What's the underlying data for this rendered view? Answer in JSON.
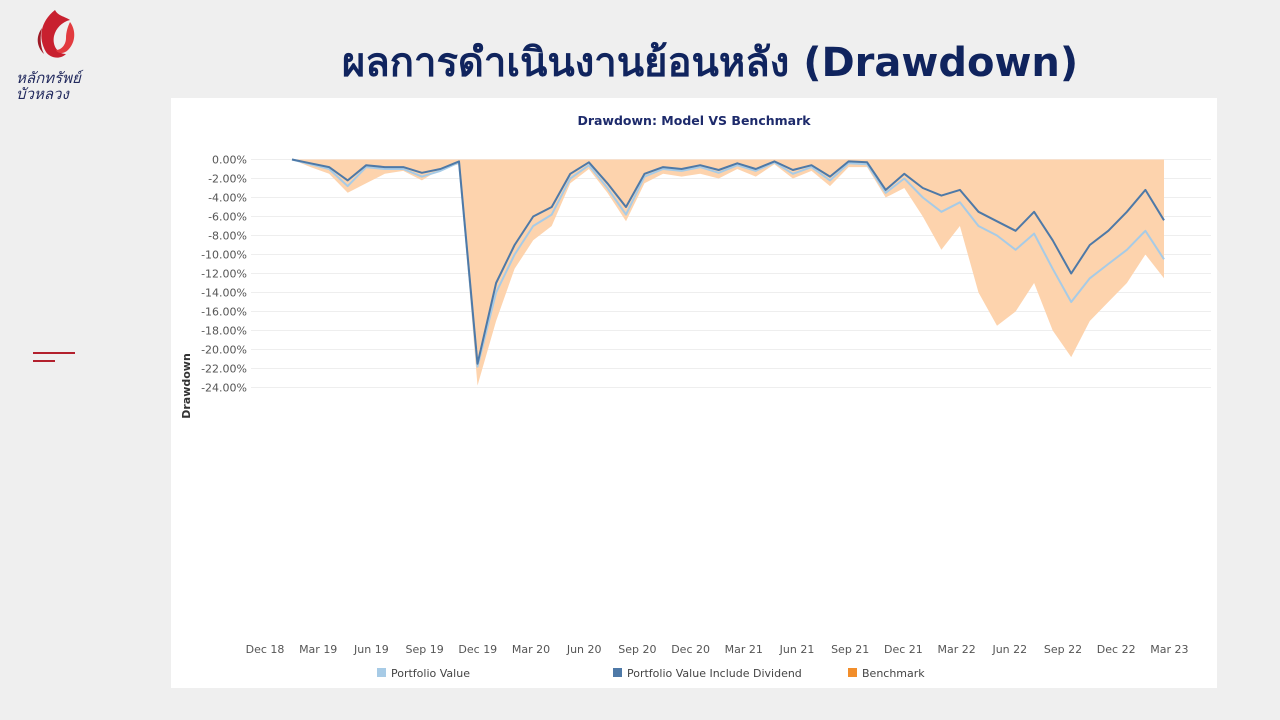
{
  "header": {
    "title": "ผลการดำเนินงานย้อนหลัง (Drawdown)",
    "logo_line1": "หลักทรัพย์",
    "logo_line2": "บัวหลวง"
  },
  "colors": {
    "portfolio_value": "#a7cbe6",
    "portfolio_include_dividend": "#4e79a7",
    "benchmark_fill": "#fdd3ad",
    "benchmark_legend": "#f28e2b",
    "title": "#10245e",
    "brand_red": "#c8202f"
  },
  "chart_data": {
    "type": "area",
    "title": "Drawdown: Model VS Benchmark",
    "xlabel": "",
    "ylabel": "Drawdown",
    "y_unit": "%",
    "ylim": [
      -25,
      0
    ],
    "y_ticks": [
      0,
      -2,
      -4,
      -6,
      -8,
      -10,
      -12,
      -14,
      -16,
      -18,
      -20,
      -22,
      -24
    ],
    "y_tick_labels": [
      "0.00%",
      "-2.00%",
      "-4.00%",
      "-6.00%",
      "-8.00%",
      "-10.00%",
      "-12.00%",
      "-14.00%",
      "-16.00%",
      "-18.00%",
      "-20.00%",
      "-22.00%",
      "-24.00%"
    ],
    "x_tick_labels": [
      "Dec 18",
      "Mar 19",
      "Jun 19",
      "Sep 19",
      "Dec 19",
      "Mar 20",
      "Jun 20",
      "Sep 20",
      "Dec 20",
      "Mar 21",
      "Jun 21",
      "Sep 21",
      "Dec 21",
      "Mar 22",
      "Jun 22",
      "Sep 22",
      "Dec 22",
      "Mar 23"
    ],
    "grid": "horizontal",
    "legend_position": "bottom",
    "x": [
      "2019-01",
      "2019-03",
      "2019-05",
      "2019-06",
      "2019-08",
      "2019-09",
      "2019-11",
      "2019-12",
      "2020-01",
      "2020-02",
      "2020-03",
      "2020-03",
      "2020-04",
      "2020-05",
      "2020-06",
      "2020-07",
      "2020-08",
      "2020-09",
      "2020-10",
      "2020-11",
      "2020-12",
      "2021-01",
      "2021-02",
      "2021-03",
      "2021-04",
      "2021-05",
      "2021-06",
      "2021-07",
      "2021-08",
      "2021-09",
      "2021-10",
      "2021-11",
      "2021-12",
      "2022-01",
      "2022-02",
      "2022-03",
      "2022-04",
      "2022-05",
      "2022-06",
      "2022-07",
      "2022-08",
      "2022-09",
      "2022-10",
      "2022-11",
      "2022-12",
      "2023-01",
      "2023-02",
      "2023-03"
    ],
    "series": [
      {
        "name": "Portfolio Value",
        "values": [
          0,
          -0.5,
          -1,
          -2.8,
          -0.8,
          -1,
          -1,
          -1.8,
          -1.2,
          -0.3,
          -21.8,
          -14,
          -10,
          -7,
          -5.8,
          -2,
          -0.6,
          -3,
          -5.8,
          -1.8,
          -1,
          -1.2,
          -0.8,
          -1.4,
          -0.6,
          -1.2,
          -0.3,
          -1.5,
          -0.8,
          -2.2,
          -0.4,
          -0.5,
          -3.5,
          -2,
          -4,
          -5.5,
          -4.5,
          -7,
          -8,
          -9.5,
          -7.8,
          -11.5,
          -15,
          -12.5,
          -11,
          -9.5,
          -7.5,
          -10.5
        ]
      },
      {
        "name": "Portfolio Value Include Dividend",
        "values": [
          0,
          -0.4,
          -0.8,
          -2.2,
          -0.6,
          -0.8,
          -0.8,
          -1.4,
          -1,
          -0.2,
          -21.5,
          -13,
          -9,
          -6,
          -5,
          -1.5,
          -0.3,
          -2.5,
          -5,
          -1.5,
          -0.8,
          -1,
          -0.6,
          -1.1,
          -0.4,
          -1,
          -0.2,
          -1.1,
          -0.6,
          -1.8,
          -0.2,
          -0.3,
          -3.2,
          -1.5,
          -3,
          -3.8,
          -3.2,
          -5.5,
          -6.5,
          -7.5,
          -5.5,
          -8.5,
          -12,
          -9,
          -7.5,
          -5.5,
          -3.2,
          -6.4
        ]
      },
      {
        "name": "Benchmark",
        "values": [
          0,
          -0.8,
          -1.5,
          -3.5,
          -2.5,
          -1.5,
          -1.2,
          -2.2,
          -1,
          -0.5,
          -23.8,
          -17,
          -11.5,
          -8.5,
          -7,
          -2.5,
          -1,
          -3.5,
          -6.5,
          -2.5,
          -1.5,
          -1.8,
          -1.5,
          -2,
          -1,
          -1.8,
          -0.5,
          -2,
          -1.2,
          -2.8,
          -0.8,
          -0.8,
          -4,
          -3,
          -6,
          -9.5,
          -7,
          -14,
          -17.5,
          -16,
          -13,
          -18,
          -20.8,
          -17,
          -15,
          -13,
          -10,
          -12.5
        ]
      }
    ]
  }
}
